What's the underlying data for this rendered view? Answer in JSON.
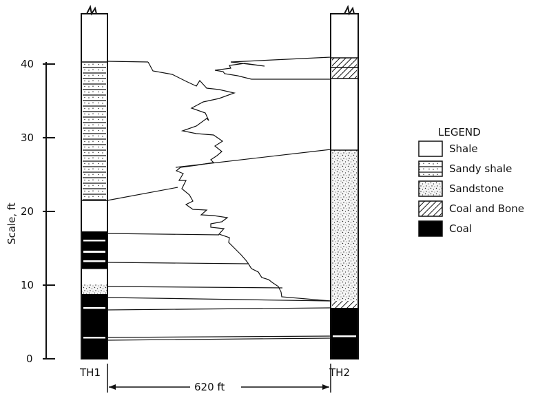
{
  "axis": {
    "label": "Scale, ft",
    "ticks": [
      "0",
      "10",
      "20",
      "30",
      "40"
    ]
  },
  "holes": {
    "left": "TH1",
    "right": "TH2"
  },
  "distance": "620 ft",
  "legend": {
    "title": "LEGEND",
    "items": [
      {
        "key": "shale",
        "label": "Shale",
        "fill": "#ffffff"
      },
      {
        "key": "sandy-shale",
        "label": "Sandy shale",
        "fill": "#ffffff"
      },
      {
        "key": "sandstone",
        "label": "Sandstone",
        "fill": "#f2f2f2"
      },
      {
        "key": "coal-and-bone",
        "label": "Coal and Bone",
        "fill": "#ffffff"
      },
      {
        "key": "coal",
        "label": "Coal",
        "fill": "#000000"
      }
    ]
  },
  "colors": {
    "ink": "#111111",
    "paper": "#ffffff"
  }
}
